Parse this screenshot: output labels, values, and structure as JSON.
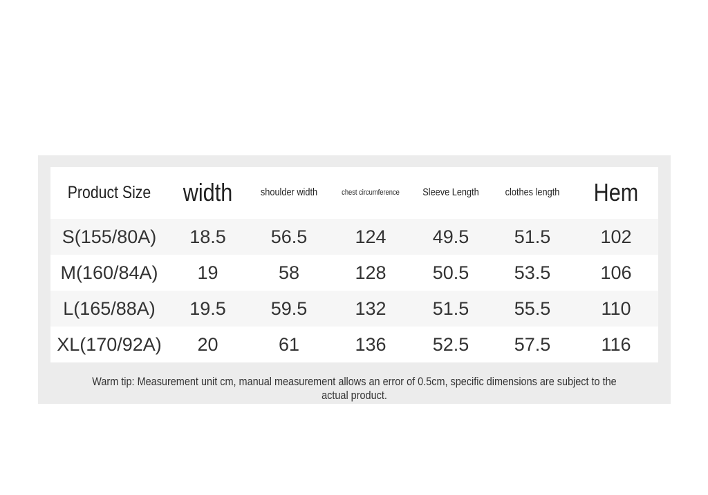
{
  "table": {
    "headers": [
      "Product Size",
      "width",
      "shoulder width",
      "chest circumference",
      "Sleeve Length",
      "clothes length",
      "Hem"
    ],
    "rows": [
      [
        "S(155/80A)",
        18.5,
        56.5,
        124,
        49.5,
        51.5,
        102
      ],
      [
        "M(160/84A)",
        19,
        58,
        128,
        50.5,
        53.5,
        106
      ],
      [
        "L(165/88A)",
        19.5,
        59.5,
        132,
        51.5,
        55.5,
        110
      ],
      [
        "XL(170/92A)",
        20,
        61,
        136,
        52.5,
        57.5,
        116
      ]
    ]
  },
  "note": "Warm tip: Measurement unit cm, manual measurement allows an error of 0.5cm, specific dimensions are subject to the actual product."
}
